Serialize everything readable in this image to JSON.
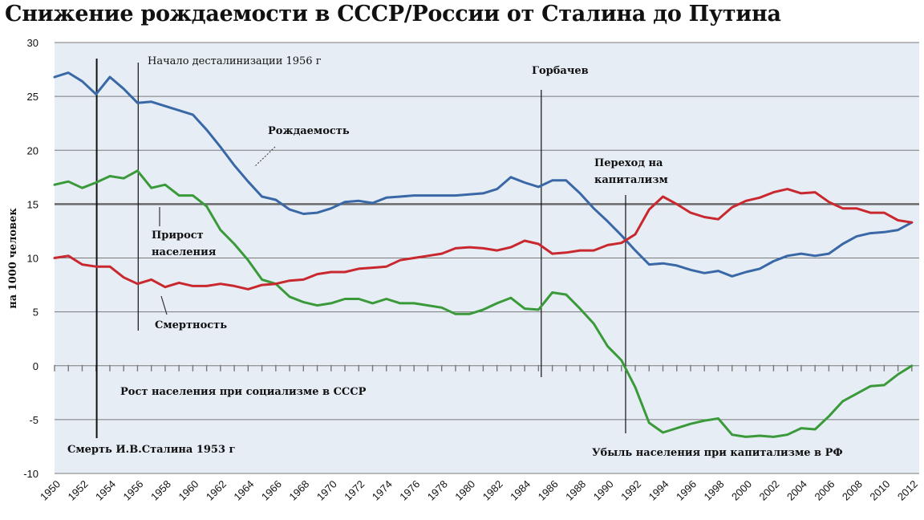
{
  "chart_data": {
    "type": "line",
    "title": "Снижение рождаемости в СССР/России от Сталина до Путина",
    "ylabel": "на 1000 человек",
    "xlabel": "",
    "xlim": [
      1950,
      2012
    ],
    "ylim": [
      -10,
      30
    ],
    "grid": true,
    "y_ticks": [
      30,
      25,
      20,
      15,
      10,
      5,
      0,
      -5,
      -10
    ],
    "x_ticks": [
      "1950",
      "1952",
      "1954",
      "1956",
      "1958",
      "1960",
      "1962",
      "1964",
      "1966",
      "1968",
      "1970",
      "1972",
      "1974",
      "1976",
      "1978",
      "1980",
      "1982",
      "1984",
      "1986",
      "1988",
      "1990",
      "1992",
      "1994",
      "1996",
      "1998",
      "2000",
      "2002",
      "2004",
      "2006",
      "2008",
      "2010",
      "2012"
    ],
    "series": [
      {
        "name": "Рождаемость",
        "color": "#3a68a6",
        "x": [
          1950,
          1951,
          1952,
          1953,
          1954,
          1955,
          1956,
          1957,
          1958,
          1959,
          1960,
          1961,
          1962,
          1963,
          1964,
          1965,
          1966,
          1967,
          1968,
          1969,
          1970,
          1971,
          1972,
          1973,
          1974,
          1975,
          1976,
          1977,
          1978,
          1979,
          1980,
          1981,
          1982,
          1983,
          1984,
          1985,
          1986,
          1987,
          1988,
          1989,
          1990,
          1991,
          1992,
          1993,
          1994,
          1995,
          1996,
          1997,
          1998,
          1999,
          2000,
          2001,
          2002,
          2003,
          2004,
          2005,
          2006,
          2007,
          2008,
          2009,
          2010,
          2011,
          2012
        ],
        "values": [
          26.8,
          27.2,
          26.4,
          25.2,
          26.8,
          25.7,
          24.4,
          24.5,
          24.1,
          23.7,
          23.3,
          21.9,
          20.3,
          18.6,
          17.1,
          15.7,
          15.4,
          14.5,
          14.1,
          14.2,
          14.6,
          15.2,
          15.3,
          15.1,
          15.6,
          15.7,
          15.8,
          15.8,
          15.8,
          15.8,
          15.9,
          16.0,
          16.4,
          17.5,
          17.0,
          16.6,
          17.2,
          17.2,
          16.0,
          14.6,
          13.4,
          12.1,
          10.7,
          9.4,
          9.5,
          9.3,
          8.9,
          8.6,
          8.8,
          8.3,
          8.7,
          9.0,
          9.7,
          10.2,
          10.4,
          10.2,
          10.4,
          11.3,
          12.0,
          12.3,
          12.4,
          12.6,
          13.3
        ]
      },
      {
        "name": "Прирост населения",
        "color": "#3a9a3a",
        "x": [
          1950,
          1951,
          1952,
          1953,
          1954,
          1955,
          1956,
          1957,
          1958,
          1959,
          1960,
          1961,
          1962,
          1963,
          1964,
          1965,
          1966,
          1967,
          1968,
          1969,
          1970,
          1971,
          1972,
          1973,
          1974,
          1975,
          1976,
          1977,
          1978,
          1979,
          1980,
          1981,
          1982,
          1983,
          1984,
          1985,
          1986,
          1987,
          1988,
          1989,
          1990,
          1991,
          1992,
          1993,
          1994,
          1995,
          1996,
          1997,
          1998,
          1999,
          2000,
          2001,
          2002,
          2003,
          2004,
          2005,
          2006,
          2007,
          2008,
          2009,
          2010,
          2011,
          2012
        ],
        "values": [
          16.8,
          17.1,
          16.5,
          17.0,
          17.6,
          17.4,
          18.1,
          16.5,
          16.8,
          15.8,
          15.8,
          14.8,
          12.6,
          11.3,
          9.8,
          8.0,
          7.6,
          6.4,
          5.9,
          5.6,
          5.8,
          6.2,
          6.2,
          5.8,
          6.2,
          5.8,
          5.8,
          5.6,
          5.4,
          4.8,
          4.8,
          5.2,
          5.8,
          6.3,
          5.3,
          5.2,
          6.8,
          6.6,
          5.3,
          3.9,
          1.8,
          0.5,
          -2.0,
          -5.3,
          -6.2,
          -5.8,
          -5.4,
          -5.1,
          -4.9,
          -6.4,
          -6.6,
          -6.5,
          -6.6,
          -6.4,
          -5.8,
          -5.9,
          -4.7,
          -3.3,
          -2.6,
          -1.9,
          -1.8,
          -0.8,
          0
        ]
      },
      {
        "name": "Смертность",
        "color": "#c8282e",
        "x": [
          1950,
          1951,
          1952,
          1953,
          1954,
          1955,
          1956,
          1957,
          1958,
          1959,
          1960,
          1961,
          1962,
          1963,
          1964,
          1965,
          1966,
          1967,
          1968,
          1969,
          1970,
          1971,
          1972,
          1973,
          1974,
          1975,
          1976,
          1977,
          1978,
          1979,
          1980,
          1981,
          1982,
          1983,
          1984,
          1985,
          1986,
          1987,
          1988,
          1989,
          1990,
          1991,
          1992,
          1993,
          1994,
          1995,
          1996,
          1997,
          1998,
          1999,
          2000,
          2001,
          2002,
          2003,
          2004,
          2005,
          2006,
          2007,
          2008,
          2009,
          2010,
          2011,
          2012
        ],
        "values": [
          10.0,
          10.2,
          9.4,
          9.2,
          9.2,
          8.2,
          7.6,
          8.0,
          7.3,
          7.7,
          7.4,
          7.4,
          7.6,
          7.4,
          7.1,
          7.5,
          7.6,
          7.9,
          8.0,
          8.5,
          8.7,
          8.7,
          9.0,
          9.1,
          9.2,
          9.8,
          10.0,
          10.2,
          10.4,
          10.9,
          11.0,
          10.9,
          10.7,
          11.0,
          11.6,
          11.3,
          10.4,
          10.5,
          10.7,
          10.7,
          11.2,
          11.4,
          12.2,
          14.5,
          15.7,
          15.0,
          14.2,
          13.8,
          13.6,
          14.7,
          15.3,
          15.6,
          16.1,
          16.4,
          16.0,
          16.1,
          15.2,
          14.6,
          14.6,
          14.2,
          14.2,
          13.5,
          13.3
        ]
      }
    ],
    "annotations": {
      "destalin": "Начало десталинизации 1956 г",
      "gorbachev": "Горбачев",
      "capitalism_1": "Переход на",
      "capitalism_2": "капитализм",
      "birth_label": "Рождаемость",
      "growth_label_1": "Прирост",
      "growth_label_2": "населения",
      "death_label": "Смертность",
      "growth_ussr": "Рост населения при социализме в СССР",
      "stalin_death": "Смерть И.В.Сталина 1953 г",
      "decline_rf": "Убыль населения при капитализме в РФ"
    },
    "colors": {
      "plot_background": "#e6edf5",
      "gridline": "#7a7a7a",
      "gridline_15": "#6a6a6a"
    }
  }
}
